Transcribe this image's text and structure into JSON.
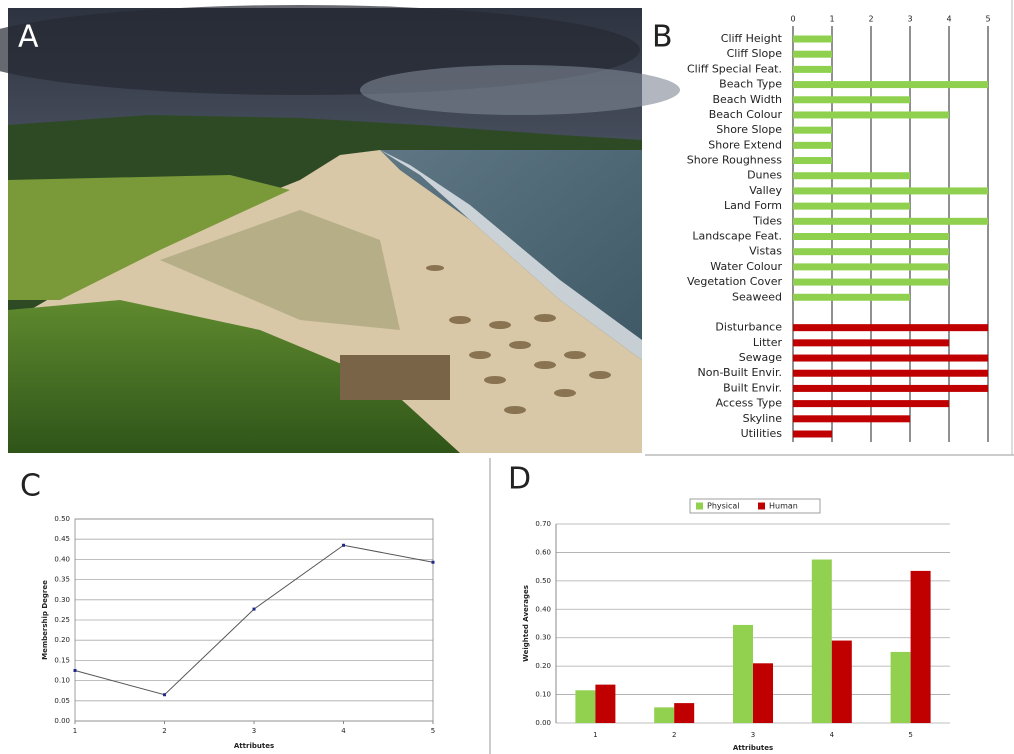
{
  "panel_labels": [
    "A",
    "B",
    "C",
    "D"
  ],
  "chart_data": [
    {
      "type": "hbar",
      "categories": [
        "Cliff Height",
        "Cliff Slope",
        "Cliff Special Feat.",
        "Beach Type",
        "Beach Width",
        "Beach Colour",
        "Shore Slope",
        "Shore Extend",
        "Shore Roughness",
        "Dunes",
        "Valley",
        "Land Form",
        "Tides",
        "Landscape Feat.",
        "Vistas",
        "Water Colour",
        "Vegetation Cover",
        "Seaweed",
        null,
        "Disturbance",
        "Litter",
        "Sewage",
        "Non-Built Envir.",
        "Built Envir.",
        "Access Type",
        "Skyline",
        "Utilities"
      ],
      "values": [
        1,
        1,
        1,
        5,
        3,
        4,
        1,
        1,
        1,
        3,
        5,
        3,
        5,
        4,
        4,
        4,
        4,
        3,
        null,
        5,
        4,
        5,
        5,
        5,
        4,
        3,
        1
      ],
      "colors": [
        "#8fd14f",
        "#8fd14f",
        "#8fd14f",
        "#8fd14f",
        "#8fd14f",
        "#8fd14f",
        "#8fd14f",
        "#8fd14f",
        "#8fd14f",
        "#8fd14f",
        "#8fd14f",
        "#8fd14f",
        "#8fd14f",
        "#8fd14f",
        "#8fd14f",
        "#8fd14f",
        "#8fd14f",
        "#8fd14f",
        null,
        "#c00000",
        "#c00000",
        "#c00000",
        "#c00000",
        "#c00000",
        "#c00000",
        "#c00000",
        "#c00000"
      ],
      "xlim": [
        0,
        5
      ],
      "xticks": [
        0,
        1,
        2,
        3,
        4,
        5
      ],
      "grid": true
    },
    {
      "type": "line",
      "x": [
        1,
        2,
        3,
        4,
        5
      ],
      "values": [
        0.125,
        0.065,
        0.277,
        0.435,
        0.393
      ],
      "color": "#555555",
      "marker_color": "#1f2a8a",
      "xlim": [
        1,
        5
      ],
      "xticks": [
        1,
        2,
        3,
        4,
        5
      ],
      "ylim": [
        0,
        0.5
      ],
      "yticks": [
        {
          "value": 0,
          "label": "0.00"
        },
        {
          "value": 0.05,
          "label": "0.05"
        },
        {
          "value": 0.1,
          "label": "0.10"
        },
        {
          "value": 0.15,
          "label": "0.15"
        },
        {
          "value": 0.2,
          "label": "0.20"
        },
        {
          "value": 0.25,
          "label": "0.25"
        },
        {
          "value": 0.3,
          "label": "0.30"
        },
        {
          "value": 0.35,
          "label": "0.35"
        },
        {
          "value": 0.4,
          "label": "0.40"
        },
        {
          "value": 0.45,
          "label": "0.45"
        },
        {
          "value": 0.5,
          "label": "0.50"
        }
      ],
      "xlabel": "Attributes",
      "ylabel": "Membership Degree",
      "grid": true
    },
    {
      "type": "bar",
      "categories": [
        "1",
        "2",
        "3",
        "4",
        "5"
      ],
      "series": [
        {
          "name": "Physical",
          "color": "#92d050",
          "values": [
            0.115,
            0.055,
            0.345,
            0.575,
            0.25
          ]
        },
        {
          "name": "Human",
          "color": "#c00000",
          "values": [
            0.135,
            0.07,
            0.21,
            0.29,
            0.535
          ]
        }
      ],
      "ylim": [
        0,
        0.7
      ],
      "yticks": [
        {
          "value": 0,
          "label": "0.00"
        },
        {
          "value": 0.1,
          "label": "0.10"
        },
        {
          "value": 0.2,
          "label": "0.20"
        },
        {
          "value": 0.3,
          "label": "0.30"
        },
        {
          "value": 0.4,
          "label": "0.40"
        },
        {
          "value": 0.5,
          "label": "0.50"
        },
        {
          "value": 0.6,
          "label": "0.60"
        },
        {
          "value": 0.7,
          "label": "0.70"
        }
      ],
      "xlabel": "Attributes",
      "ylabel": "Weighted Averages",
      "grid": true,
      "legend": "top"
    }
  ]
}
